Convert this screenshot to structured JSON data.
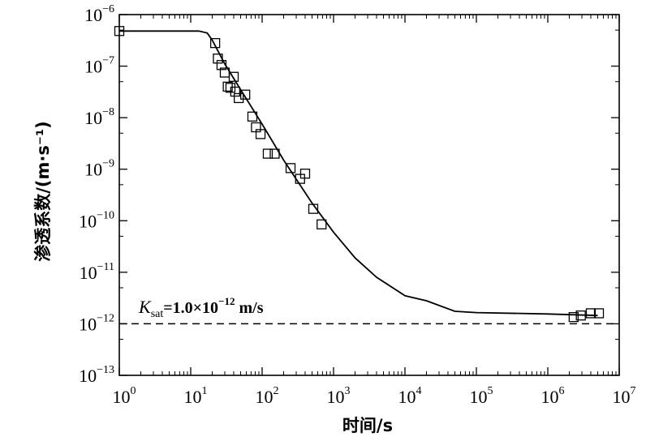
{
  "chart_data": {
    "type": "scatter",
    "xlabel": "时间/s",
    "ylabel": "渗透系数/(m·s⁻¹)",
    "x_scale": "log",
    "y_scale": "log",
    "xlim": [
      1,
      10000000
    ],
    "ylim": [
      1e-13,
      1e-06
    ],
    "grid": false,
    "x_ticks": [
      {
        "value": 1,
        "base": "10",
        "exp": "0"
      },
      {
        "value": 10,
        "base": "10",
        "exp": "1"
      },
      {
        "value": 100,
        "base": "10",
        "exp": "2"
      },
      {
        "value": 1000,
        "base": "10",
        "exp": "3"
      },
      {
        "value": 10000,
        "base": "10",
        "exp": "4"
      },
      {
        "value": 100000,
        "base": "10",
        "exp": "5"
      },
      {
        "value": 1000000,
        "base": "10",
        "exp": "6"
      },
      {
        "value": 10000000,
        "base": "10",
        "exp": "7"
      }
    ],
    "y_ticks": [
      {
        "value": 1e-06,
        "base": "10",
        "exp": "−6"
      },
      {
        "value": 1e-07,
        "base": "10",
        "exp": "−7"
      },
      {
        "value": 1e-08,
        "base": "10",
        "exp": "−8"
      },
      {
        "value": 1e-09,
        "base": "10",
        "exp": "−9"
      },
      {
        "value": 1e-10,
        "base": "10",
        "exp": "−10"
      },
      {
        "value": 1e-11,
        "base": "10",
        "exp": "−11"
      },
      {
        "value": 1e-12,
        "base": "10",
        "exp": "−12"
      },
      {
        "value": 1e-13,
        "base": "10",
        "exp": "−13"
      }
    ],
    "series": [
      {
        "marker": "open-square",
        "points": [
          [
            1.0,
            4.8e-07
          ],
          [
            22,
            2.8e-07
          ],
          [
            24,
            1.4e-07
          ],
          [
            27,
            1.05e-07
          ],
          [
            30,
            7.5e-08
          ],
          [
            33,
            4e-08
          ],
          [
            36,
            3.8e-08
          ],
          [
            40,
            6.2e-08
          ],
          [
            42,
            3.2e-08
          ],
          [
            47,
            2.4e-08
          ],
          [
            58,
            2.8e-08
          ],
          [
            73,
            1.05e-08
          ],
          [
            82,
            6.5e-09
          ],
          [
            95,
            4.8e-09
          ],
          [
            120,
            2e-09
          ],
          [
            150,
            2e-09
          ],
          [
            250,
            1.05e-09
          ],
          [
            340,
            6.5e-10
          ],
          [
            400,
            8.2e-10
          ],
          [
            520,
            1.7e-10
          ],
          [
            680,
            8.5e-11
          ],
          [
            2300000,
            1.35e-12
          ],
          [
            2900000,
            1.45e-12
          ],
          [
            4000000,
            1.6e-12
          ],
          [
            5200000,
            1.6e-12
          ]
        ]
      },
      {
        "style": "solid-line",
        "points": [
          [
            1,
            4.8e-07
          ],
          [
            13,
            4.8e-07
          ],
          [
            17,
            4.4e-07
          ],
          [
            20,
            3.2e-07
          ],
          [
            30,
            1.1e-07
          ],
          [
            50,
            3.5e-08
          ],
          [
            100,
            7.5e-09
          ],
          [
            200,
            1.5e-09
          ],
          [
            500,
            2.2e-10
          ],
          [
            1000,
            6e-11
          ],
          [
            2000,
            1.9e-11
          ],
          [
            4000,
            8e-12
          ],
          [
            10000,
            3.5e-12
          ],
          [
            20000,
            2.8e-12
          ],
          [
            50000,
            1.75e-12
          ],
          [
            100000,
            1.65e-12
          ],
          [
            1000000,
            1.55e-12
          ],
          [
            5000000,
            1.45e-12
          ]
        ]
      },
      {
        "style": "dashed-line",
        "points": [
          [
            1,
            1e-12
          ],
          [
            10000000,
            1e-12
          ]
        ]
      }
    ],
    "annotation": {
      "sym": "K",
      "sub": "sat",
      "mid": "=1.0×10",
      "sup": "−12",
      "unit": " m/s",
      "at": [
        1.3,
        1.5e-12
      ]
    }
  }
}
